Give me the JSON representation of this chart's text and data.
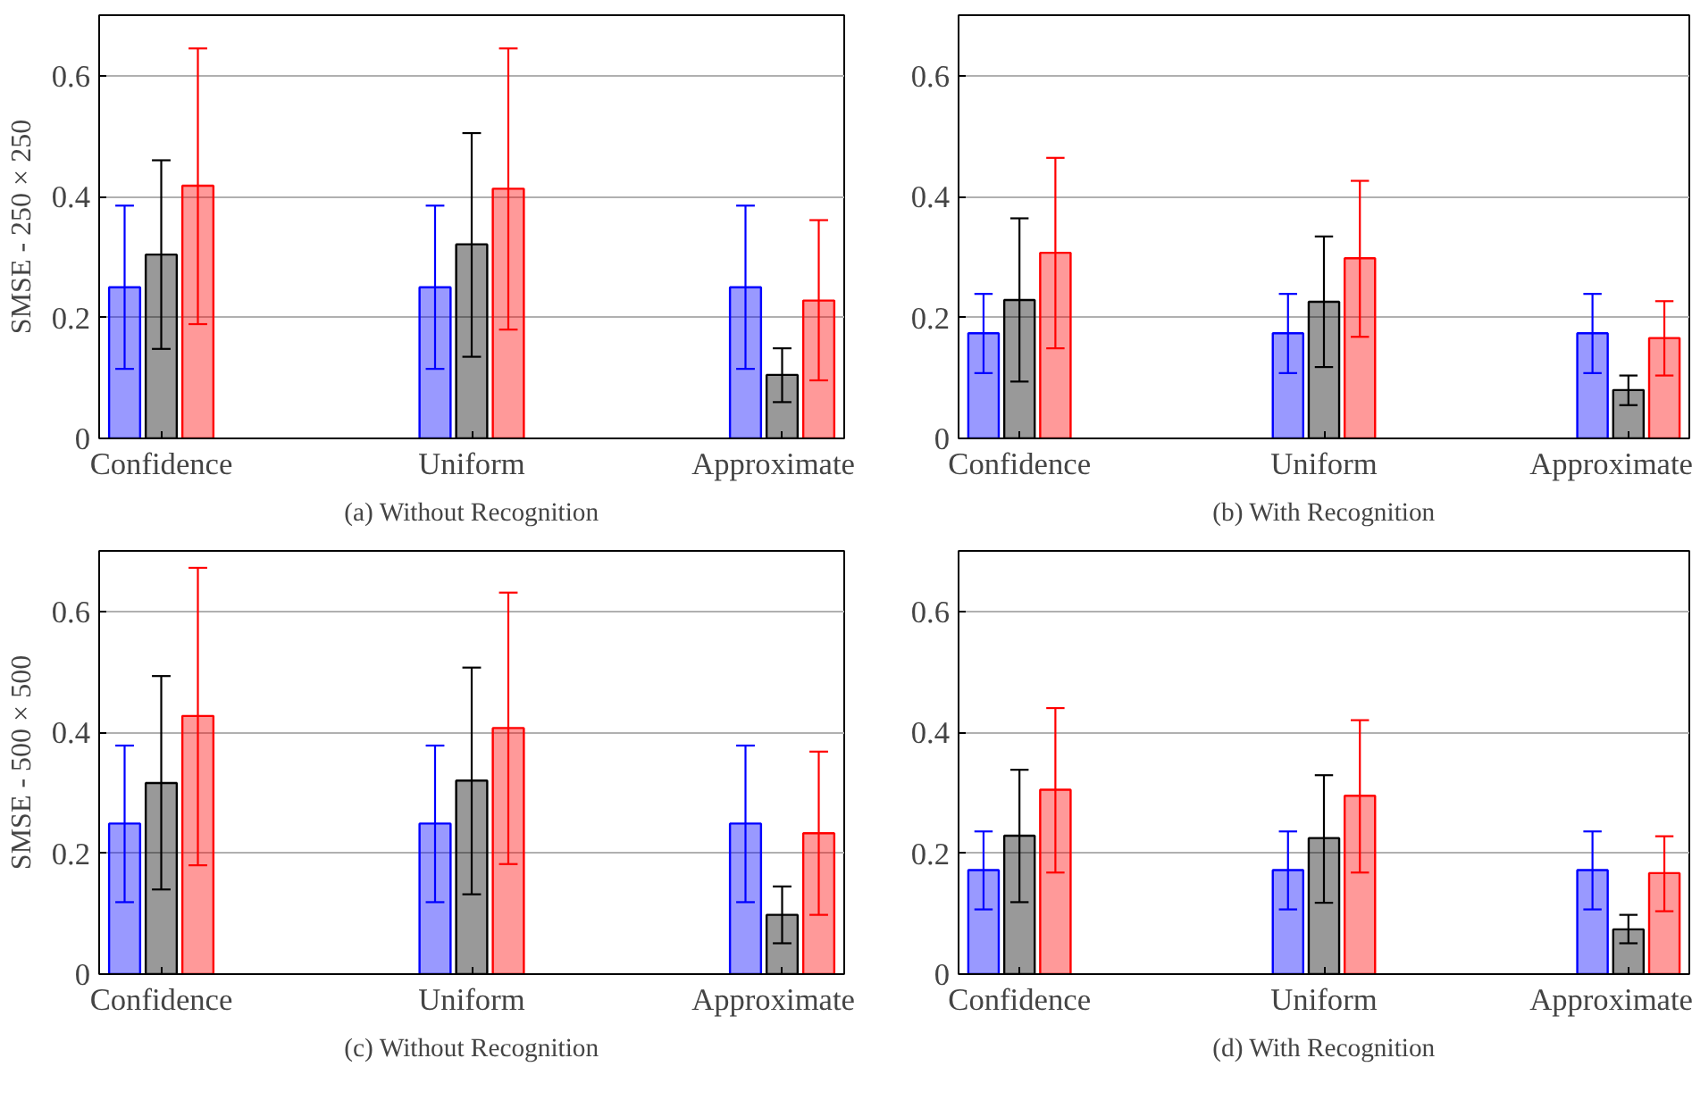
{
  "chart_data": [
    {
      "type": "bar",
      "title": "(a) Without Recognition",
      "ylabel": "SMSE - 250 × 250",
      "categories": [
        "Confidence",
        "Uniform",
        "Approximate"
      ],
      "ylim": [
        0,
        0.7
      ],
      "yticks": [
        0,
        0.2,
        0.4,
        0.6
      ],
      "grid": "y",
      "series": [
        {
          "color": "#0000ff",
          "values": [
            0.25,
            0.25,
            0.25
          ],
          "errors": [
            [
              0.115,
              0.385
            ],
            [
              0.115,
              0.385
            ],
            [
              0.115,
              0.385
            ]
          ]
        },
        {
          "color": "#000000",
          "values": [
            0.304,
            0.321,
            0.105
          ],
          "errors": [
            [
              0.148,
              0.46
            ],
            [
              0.135,
              0.505
            ],
            [
              0.06,
              0.149
            ]
          ]
        },
        {
          "color": "#ff0000",
          "values": [
            0.418,
            0.413,
            0.228
          ],
          "errors": [
            [
              0.189,
              0.645
            ],
            [
              0.18,
              0.645
            ],
            [
              0.096,
              0.361
            ]
          ]
        }
      ]
    },
    {
      "type": "bar",
      "title": "(b) With Recognition",
      "categories": [
        "Confidence",
        "Uniform",
        "Approximate"
      ],
      "ylim": [
        0,
        0.7
      ],
      "yticks": [
        0,
        0.2,
        0.4,
        0.6
      ],
      "grid": "y",
      "series": [
        {
          "color": "#0000ff",
          "values": [
            0.174,
            0.174,
            0.174
          ],
          "errors": [
            [
              0.108,
              0.239
            ],
            [
              0.108,
              0.239
            ],
            [
              0.108,
              0.239
            ]
          ]
        },
        {
          "color": "#000000",
          "values": [
            0.229,
            0.226,
            0.08
          ],
          "errors": [
            [
              0.094,
              0.364
            ],
            [
              0.118,
              0.334
            ],
            [
              0.055,
              0.104
            ]
          ]
        },
        {
          "color": "#ff0000",
          "values": [
            0.307,
            0.298,
            0.166
          ],
          "errors": [
            [
              0.149,
              0.464
            ],
            [
              0.168,
              0.426
            ],
            [
              0.104,
              0.227
            ]
          ]
        }
      ]
    },
    {
      "type": "bar",
      "title": "(c) Without Recognition",
      "ylabel": "SMSE - 500 × 500",
      "categories": [
        "Confidence",
        "Uniform",
        "Approximate"
      ],
      "ylim": [
        0,
        0.7
      ],
      "yticks": [
        0,
        0.2,
        0.4,
        0.6
      ],
      "grid": "y",
      "series": [
        {
          "color": "#0000ff",
          "values": [
            0.249,
            0.249,
            0.249
          ],
          "errors": [
            [
              0.119,
              0.378
            ],
            [
              0.119,
              0.378
            ],
            [
              0.119,
              0.378
            ]
          ]
        },
        {
          "color": "#000000",
          "values": [
            0.316,
            0.32,
            0.098
          ],
          "errors": [
            [
              0.14,
              0.493
            ],
            [
              0.132,
              0.507
            ],
            [
              0.051,
              0.145
            ]
          ]
        },
        {
          "color": "#ff0000",
          "values": [
            0.427,
            0.407,
            0.233
          ],
          "errors": [
            [
              0.18,
              0.672
            ],
            [
              0.182,
              0.631
            ],
            [
              0.098,
              0.368
            ]
          ]
        }
      ]
    },
    {
      "type": "bar",
      "title": "(d) With Recognition",
      "categories": [
        "Confidence",
        "Uniform",
        "Approximate"
      ],
      "ylim": [
        0,
        0.7
      ],
      "yticks": [
        0,
        0.2,
        0.4,
        0.6
      ],
      "grid": "y",
      "series": [
        {
          "color": "#0000ff",
          "values": [
            0.172,
            0.172,
            0.172
          ],
          "errors": [
            [
              0.107,
              0.236
            ],
            [
              0.107,
              0.236
            ],
            [
              0.107,
              0.236
            ]
          ]
        },
        {
          "color": "#000000",
          "values": [
            0.229,
            0.225,
            0.074
          ],
          "errors": [
            [
              0.119,
              0.338
            ],
            [
              0.118,
              0.329
            ],
            [
              0.051,
              0.098
            ]
          ]
        },
        {
          "color": "#ff0000",
          "values": [
            0.305,
            0.295,
            0.167
          ],
          "errors": [
            [
              0.168,
              0.44
            ],
            [
              0.168,
              0.42
            ],
            [
              0.104,
              0.228
            ]
          ]
        }
      ]
    }
  ]
}
